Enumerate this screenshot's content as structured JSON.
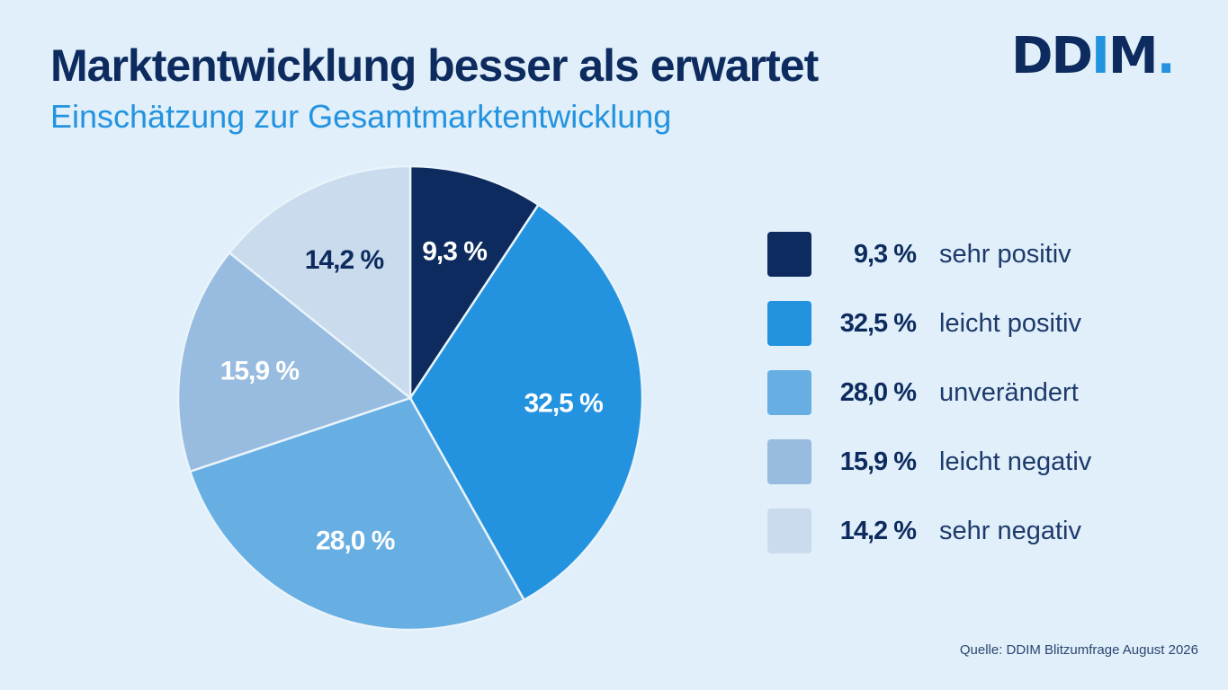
{
  "title": "Marktentwicklung besser als erwartet",
  "subtitle": "Einschätzung zur Gesamtmarktentwicklung",
  "logo": {
    "main": "DD",
    "accent": "I",
    "tail": "M",
    "dot": "."
  },
  "source": "Quelle: DDIM Blitzumfrage August 2026",
  "colors": {
    "title": "#0d2b5e",
    "subtitle": "#2393df",
    "background": "#e0eff9"
  },
  "chart_data": {
    "type": "pie",
    "title": "Marktentwicklung besser als erwartet",
    "subtitle": "Einschätzung zur Gesamtmarktentwicklung",
    "legend_position": "right",
    "slices": [
      {
        "label": "sehr positiv",
        "value": 9.3,
        "display": "9,3 %",
        "color": "#0d2b5e",
        "label_color": "#ffffff"
      },
      {
        "label": "leicht positiv",
        "value": 32.5,
        "display": "32,5 %",
        "color": "#2393df",
        "label_color": "#ffffff"
      },
      {
        "label": "unverändert",
        "value": 28.0,
        "display": "28,0 %",
        "color": "#67afe3",
        "label_color": "#ffffff"
      },
      {
        "label": "leicht negativ",
        "value": 15.9,
        "display": "15,9 %",
        "color": "#97bcdf",
        "label_color": "#ffffff"
      },
      {
        "label": "sehr negativ",
        "value": 14.2,
        "display": "14,2 %",
        "color": "#c9dbec",
        "label_color": "#0d2b5e"
      }
    ]
  }
}
